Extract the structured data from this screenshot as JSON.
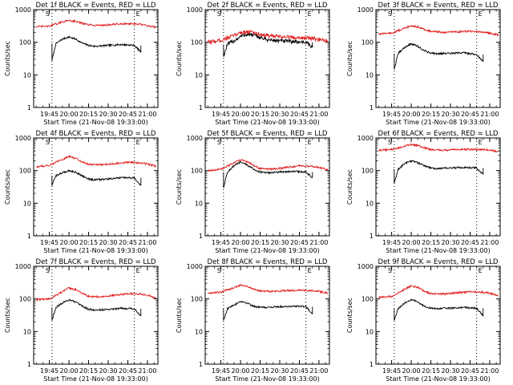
{
  "colors": {
    "events": "#000000",
    "lld": "#e01a1a",
    "axes": "#000000",
    "background": "#ffffff"
  },
  "labels": {
    "ylabel": "Counts/sec",
    "xlabel": "Start Time (21-Nov-08 19:33:00)",
    "x_ticks": [
      "19:45",
      "20:00",
      "20:15",
      "20:30",
      "20:45",
      "21:00"
    ],
    "y_ticks": [
      "1",
      "10",
      "100",
      "1000"
    ],
    "marker_left": "S",
    "marker_right": "E"
  },
  "chart_data": [
    {
      "type": "line",
      "title": "Det 1f BLACK = Events, RED = LLD",
      "yscale": "log",
      "ylim": [
        1,
        1000
      ],
      "xlim_minutes_after_start": [
        0,
        95
      ],
      "x_ticks": [
        "19:45",
        "20:00",
        "20:15",
        "20:30",
        "20:45",
        "21:00"
      ],
      "vlines": [
        "19:47",
        "20:50"
      ],
      "series": [
        {
          "name": "Events",
          "color": "#000000",
          "x": [
            "19:47",
            "19:50",
            "19:55",
            "20:00",
            "20:05",
            "20:10",
            "20:15",
            "20:20",
            "20:30",
            "20:40",
            "20:50",
            "20:55"
          ],
          "y": [
            28,
            90,
            125,
            145,
            125,
            95,
            80,
            75,
            80,
            85,
            80,
            50
          ]
        },
        {
          "name": "LLD",
          "color": "#e01a1a",
          "x": [
            "19:35",
            "19:45",
            "19:55",
            "20:00",
            "20:05",
            "20:10",
            "20:15",
            "20:25",
            "20:35",
            "20:45",
            "20:55",
            "21:00",
            "21:07"
          ],
          "y": [
            300,
            310,
            420,
            470,
            440,
            380,
            340,
            330,
            355,
            370,
            350,
            320,
            290
          ]
        }
      ]
    },
    {
      "type": "line",
      "title": "Det 2f BLACK = Events, RED = LLD",
      "yscale": "log",
      "ylim": [
        1,
        1000
      ],
      "xlim_minutes_after_start": [
        0,
        95
      ],
      "x_ticks": [
        "19:45",
        "20:00",
        "20:15",
        "20:30",
        "20:45",
        "21:00"
      ],
      "vlines": [
        "19:47",
        "20:50"
      ],
      "series": [
        {
          "name": "Events",
          "color": "#000000",
          "x": [
            "19:47",
            "19:50",
            "19:55",
            "20:00",
            "20:05",
            "20:10",
            "20:15",
            "20:20",
            "20:30",
            "20:40",
            "20:50",
            "20:55"
          ],
          "y": [
            38,
            85,
            110,
            150,
            175,
            165,
            140,
            120,
            110,
            105,
            100,
            70
          ]
        },
        {
          "name": "LLD",
          "color": "#e01a1a",
          "x": [
            "19:35",
            "19:45",
            "19:55",
            "20:00",
            "20:05",
            "20:10",
            "20:15",
            "20:25",
            "20:35",
            "20:45",
            "20:55",
            "21:00",
            "21:07"
          ],
          "y": [
            100,
            115,
            160,
            200,
            210,
            200,
            175,
            150,
            145,
            140,
            130,
            120,
            105
          ]
        }
      ]
    },
    {
      "type": "line",
      "title": "Det 3f BLACK = Events, RED = LLD",
      "yscale": "log",
      "ylim": [
        1,
        1000
      ],
      "xlim_minutes_after_start": [
        0,
        95
      ],
      "x_ticks": [
        "19:45",
        "20:00",
        "20:15",
        "20:30",
        "20:45",
        "21:00"
      ],
      "vlines": [
        "19:47",
        "20:50"
      ],
      "series": [
        {
          "name": "Events",
          "color": "#000000",
          "x": [
            "19:47",
            "19:50",
            "19:55",
            "20:00",
            "20:05",
            "20:10",
            "20:15",
            "20:20",
            "20:30",
            "20:40",
            "20:50",
            "20:55"
          ],
          "y": [
            15,
            45,
            70,
            90,
            75,
            55,
            47,
            45,
            45,
            48,
            42,
            25
          ]
        },
        {
          "name": "LLD",
          "color": "#e01a1a",
          "x": [
            "19:35",
            "19:45",
            "19:55",
            "20:00",
            "20:05",
            "20:10",
            "20:15",
            "20:25",
            "20:35",
            "20:45",
            "20:55",
            "21:00",
            "21:07"
          ],
          "y": [
            180,
            190,
            270,
            320,
            300,
            250,
            215,
            200,
            210,
            215,
            205,
            190,
            165
          ]
        }
      ]
    },
    {
      "type": "line",
      "title": "Det 4f BLACK = Events, RED = LLD",
      "yscale": "log",
      "ylim": [
        1,
        1000
      ],
      "xlim_minutes_after_start": [
        0,
        95
      ],
      "x_ticks": [
        "19:45",
        "20:00",
        "20:15",
        "20:30",
        "20:45",
        "21:00"
      ],
      "vlines": [
        "19:47",
        "20:50"
      ],
      "series": [
        {
          "name": "Events",
          "color": "#000000",
          "x": [
            "19:47",
            "19:50",
            "19:55",
            "20:00",
            "20:05",
            "20:10",
            "20:15",
            "20:20",
            "20:30",
            "20:40",
            "20:50",
            "20:55"
          ],
          "y": [
            35,
            70,
            85,
            100,
            90,
            70,
            55,
            52,
            55,
            60,
            60,
            35
          ]
        },
        {
          "name": "LLD",
          "color": "#e01a1a",
          "x": [
            "19:35",
            "19:45",
            "19:55",
            "20:00",
            "20:05",
            "20:10",
            "20:15",
            "20:25",
            "20:35",
            "20:45",
            "20:55",
            "21:00",
            "21:07"
          ],
          "y": [
            130,
            145,
            220,
            270,
            240,
            185,
            155,
            150,
            165,
            180,
            170,
            160,
            135
          ]
        }
      ]
    },
    {
      "type": "line",
      "title": "Det 5f BLACK = Events, RED = LLD",
      "yscale": "log",
      "ylim": [
        1,
        1000
      ],
      "xlim_minutes_after_start": [
        0,
        95
      ],
      "x_ticks": [
        "19:45",
        "20:00",
        "20:15",
        "20:30",
        "20:45",
        "21:00"
      ],
      "vlines": [
        "19:47",
        "20:50"
      ],
      "series": [
        {
          "name": "Events",
          "color": "#000000",
          "x": [
            "19:47",
            "19:50",
            "19:55",
            "20:00",
            "20:05",
            "20:10",
            "20:15",
            "20:20",
            "20:30",
            "20:40",
            "20:50",
            "20:55"
          ],
          "y": [
            30,
            90,
            140,
            180,
            150,
            110,
            90,
            85,
            90,
            95,
            90,
            60
          ]
        },
        {
          "name": "LLD",
          "color": "#e01a1a",
          "x": [
            "19:35",
            "19:45",
            "19:55",
            "20:00",
            "20:05",
            "20:10",
            "20:15",
            "20:25",
            "20:35",
            "20:45",
            "20:55",
            "21:00",
            "21:07"
          ],
          "y": [
            100,
            110,
            170,
            215,
            190,
            145,
            115,
            110,
            125,
            140,
            135,
            125,
            105
          ]
        }
      ]
    },
    {
      "type": "line",
      "title": "Det 6f BLACK = Events, RED = LLD",
      "yscale": "log",
      "ylim": [
        1,
        1000
      ],
      "xlim_minutes_after_start": [
        0,
        95
      ],
      "x_ticks": [
        "19:45",
        "20:00",
        "20:15",
        "20:30",
        "20:45",
        "21:00"
      ],
      "vlines": [
        "19:47",
        "20:50"
      ],
      "series": [
        {
          "name": "Events",
          "color": "#000000",
          "x": [
            "19:47",
            "19:50",
            "19:55",
            "20:00",
            "20:05",
            "20:10",
            "20:15",
            "20:20",
            "20:30",
            "20:40",
            "20:50",
            "20:55"
          ],
          "y": [
            40,
            110,
            165,
            200,
            175,
            140,
            120,
            115,
            120,
            125,
            120,
            75
          ]
        },
        {
          "name": "LLD",
          "color": "#e01a1a",
          "x": [
            "19:35",
            "19:45",
            "19:55",
            "20:00",
            "20:05",
            "20:10",
            "20:15",
            "20:25",
            "20:35",
            "20:45",
            "20:55",
            "21:00",
            "21:07"
          ],
          "y": [
            420,
            440,
            560,
            620,
            590,
            500,
            440,
            420,
            440,
            450,
            440,
            420,
            380
          ]
        }
      ]
    },
    {
      "type": "line",
      "title": "Det 7f BLACK = Events, RED = LLD",
      "yscale": "log",
      "ylim": [
        1,
        1000
      ],
      "xlim_minutes_after_start": [
        0,
        95
      ],
      "x_ticks": [
        "19:45",
        "20:00",
        "20:15",
        "20:30",
        "20:45",
        "21:00"
      ],
      "vlines": [
        "19:47",
        "20:50"
      ],
      "series": [
        {
          "name": "Events",
          "color": "#000000",
          "x": [
            "19:47",
            "19:50",
            "19:55",
            "20:00",
            "20:05",
            "20:10",
            "20:15",
            "20:20",
            "20:30",
            "20:40",
            "20:50",
            "20:55"
          ],
          "y": [
            22,
            55,
            75,
            95,
            80,
            60,
            48,
            45,
            48,
            52,
            50,
            30
          ]
        },
        {
          "name": "LLD",
          "color": "#e01a1a",
          "x": [
            "19:35",
            "19:45",
            "19:55",
            "20:00",
            "20:05",
            "20:10",
            "20:15",
            "20:25",
            "20:35",
            "20:45",
            "20:55",
            "21:00",
            "21:07"
          ],
          "y": [
            95,
            100,
            165,
            215,
            195,
            150,
            120,
            115,
            130,
            145,
            140,
            130,
            105
          ]
        }
      ]
    },
    {
      "type": "line",
      "title": "Det 8f BLACK = Events, RED = LLD",
      "yscale": "log",
      "ylim": [
        1,
        1000
      ],
      "xlim_minutes_after_start": [
        0,
        95
      ],
      "x_ticks": [
        "19:45",
        "20:00",
        "20:15",
        "20:30",
        "20:45",
        "21:00"
      ],
      "vlines": [
        "19:47",
        "20:50"
      ],
      "series": [
        {
          "name": "Events",
          "color": "#000000",
          "x": [
            "19:47",
            "19:50",
            "19:55",
            "20:00",
            "20:05",
            "20:10",
            "20:15",
            "20:20",
            "20:30",
            "20:40",
            "20:50",
            "20:55"
          ],
          "y": [
            22,
            50,
            65,
            85,
            75,
            60,
            55,
            55,
            58,
            60,
            58,
            35
          ]
        },
        {
          "name": "LLD",
          "color": "#e01a1a",
          "x": [
            "19:35",
            "19:45",
            "19:55",
            "20:00",
            "20:05",
            "20:10",
            "20:15",
            "20:25",
            "20:35",
            "20:45",
            "20:55",
            "21:00",
            "21:07"
          ],
          "y": [
            150,
            160,
            225,
            265,
            245,
            200,
            175,
            170,
            180,
            185,
            180,
            170,
            150
          ]
        }
      ]
    },
    {
      "type": "line",
      "title": "Det 9f BLACK = Events, RED = LLD",
      "yscale": "log",
      "ylim": [
        1,
        1000
      ],
      "xlim_minutes_after_start": [
        0,
        95
      ],
      "x_ticks": [
        "19:45",
        "20:00",
        "20:15",
        "20:30",
        "20:45",
        "21:00"
      ],
      "vlines": [
        "19:47",
        "20:50"
      ],
      "series": [
        {
          "name": "Events",
          "color": "#000000",
          "x": [
            "19:47",
            "19:50",
            "19:55",
            "20:00",
            "20:05",
            "20:10",
            "20:15",
            "20:20",
            "20:30",
            "20:40",
            "20:50",
            "20:55"
          ],
          "y": [
            22,
            50,
            75,
            95,
            80,
            60,
            52,
            50,
            52,
            55,
            52,
            30
          ]
        },
        {
          "name": "LLD",
          "color": "#e01a1a",
          "x": [
            "19:35",
            "19:45",
            "19:55",
            "20:00",
            "20:05",
            "20:10",
            "20:15",
            "20:25",
            "20:35",
            "20:45",
            "20:55",
            "21:00",
            "21:07"
          ],
          "y": [
            110,
            120,
            200,
            250,
            225,
            170,
            145,
            140,
            155,
            165,
            160,
            150,
            125
          ]
        }
      ]
    }
  ]
}
